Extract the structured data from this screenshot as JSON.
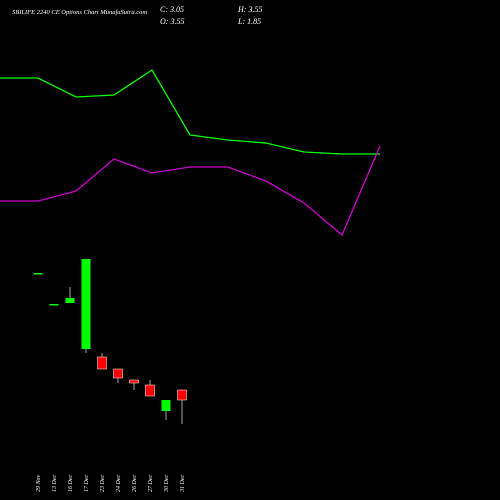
{
  "chart_data": [
    {
      "type": "line",
      "x": [
        0,
        1,
        2,
        3,
        4,
        5,
        6,
        7,
        8,
        9,
        10
      ],
      "xlim": [
        0,
        10
      ],
      "ylim": [
        0,
        500
      ],
      "series": [
        {
          "color": "#00ff00",
          "values": [
            422,
            422,
            403,
            405,
            430,
            365,
            360,
            357,
            348,
            346,
            346
          ]
        },
        {
          "color": "#cc00cc",
          "values": [
            299,
            299,
            309,
            341,
            327,
            333,
            333,
            319,
            297,
            265,
            354
          ]
        }
      ]
    },
    {
      "type": "candlestick",
      "title": "SBILIFE 2240 CE Options Chart MunafaSutra.com",
      "last": [
        "C: 3.05",
        "H: 3.55",
        "O: 3.55",
        "L: 1.85"
      ],
      "categories": [
        "29 Nov",
        "13 Dec",
        "16 Dec",
        "17 Dec",
        "23 Dec",
        "24 Dec",
        "26 Dec",
        "27 Dec",
        "30 Dec",
        "31 Dec"
      ],
      "open": [
        9.4,
        7.85,
        7.9,
        5.6,
        5.2,
        4.6,
        4.05,
        3.8,
        2.5,
        3.55
      ],
      "high": [
        9.4,
        7.85,
        8.7,
        10.1,
        5.4,
        4.6,
        4.05,
        4.05,
        3.05,
        3.55
      ],
      "low": [
        9.4,
        7.85,
        7.9,
        5.4,
        4.6,
        3.9,
        3.55,
        3.25,
        2.05,
        1.85
      ],
      "close": [
        9.4,
        7.85,
        8.15,
        10.1,
        4.6,
        4.15,
        3.9,
        3.25,
        3.05,
        3.05
      ],
      "up_color": "#00ff00",
      "down_color": "#ff0000",
      "wick_color": "#cccccc",
      "ylim": [
        1.55,
        10.55
      ]
    }
  ]
}
